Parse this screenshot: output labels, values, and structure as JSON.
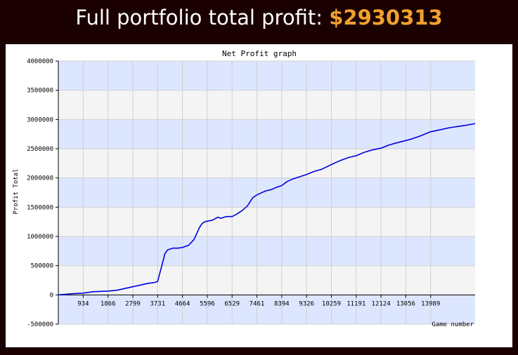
{
  "header": {
    "label": "Full portfolio total profit: ",
    "amount": "$2930313"
  },
  "colors": {
    "page_background": "#1a0000",
    "amount_accent": "#f0a030",
    "band_light": "#f4f4f4",
    "band_blue": "#dde6ff",
    "line": "#0000dd"
  },
  "chart_data": {
    "type": "line",
    "title": "Net Profit graph",
    "xlabel": "Game number",
    "ylabel": "Profit Total",
    "xlim": [
      0,
      15660
    ],
    "ylim": [
      -500000,
      4000000
    ],
    "x_ticks": [
      934,
      1866,
      2799,
      3731,
      4664,
      5596,
      6529,
      7461,
      8394,
      9326,
      10259,
      11191,
      12124,
      13056,
      13989
    ],
    "x_tick_labels": [
      "934",
      "1866",
      "2799",
      "3731",
      "4664",
      "5596",
      "6529",
      "7461",
      "8394",
      "9326",
      "10259",
      "11191",
      "12124",
      "13056",
      "13989"
    ],
    "y_ticks": [
      -500000,
      0,
      500000,
      1000000,
      1500000,
      2000000,
      2500000,
      3000000,
      3500000,
      4000000
    ],
    "y_tick_labels": [
      "-500000",
      "0",
      "500000",
      "1000000",
      "1500000",
      "2000000",
      "2500000",
      "3000000",
      "3500000",
      "4000000"
    ],
    "grid": true,
    "legend": "none",
    "series": [
      {
        "x": [
          0,
          500,
          934,
          1300,
          1600,
          1866,
          2200,
          2500,
          2799,
          3100,
          3400,
          3600,
          3731,
          3800,
          3900,
          4000,
          4100,
          4300,
          4500,
          4664,
          4900,
          5100,
          5300,
          5400,
          5500,
          5596,
          5800,
          6000,
          6100,
          6300,
          6529,
          6700,
          6900,
          7100,
          7300,
          7461,
          7600,
          7800,
          8000,
          8200,
          8394,
          8600,
          8800,
          9000,
          9326,
          9600,
          9900,
          10259,
          10600,
          10900,
          11191,
          11500,
          11800,
          12124,
          12400,
          12700,
          13056,
          13300,
          13600,
          13989,
          14300,
          14700,
          15000,
          15300,
          15660
        ],
        "y": [
          0,
          20000,
          30000,
          55000,
          60000,
          65000,
          80000,
          110000,
          140000,
          170000,
          200000,
          210000,
          230000,
          350000,
          520000,
          700000,
          770000,
          800000,
          800000,
          810000,
          850000,
          950000,
          1150000,
          1220000,
          1250000,
          1260000,
          1280000,
          1330000,
          1310000,
          1340000,
          1340000,
          1380000,
          1440000,
          1520000,
          1660000,
          1710000,
          1740000,
          1780000,
          1800000,
          1840000,
          1870000,
          1940000,
          1980000,
          2010000,
          2060000,
          2110000,
          2150000,
          2230000,
          2300000,
          2350000,
          2380000,
          2440000,
          2480000,
          2510000,
          2560000,
          2600000,
          2640000,
          2670000,
          2720000,
          2790000,
          2820000,
          2860000,
          2880000,
          2900000,
          2930313
        ]
      }
    ]
  }
}
